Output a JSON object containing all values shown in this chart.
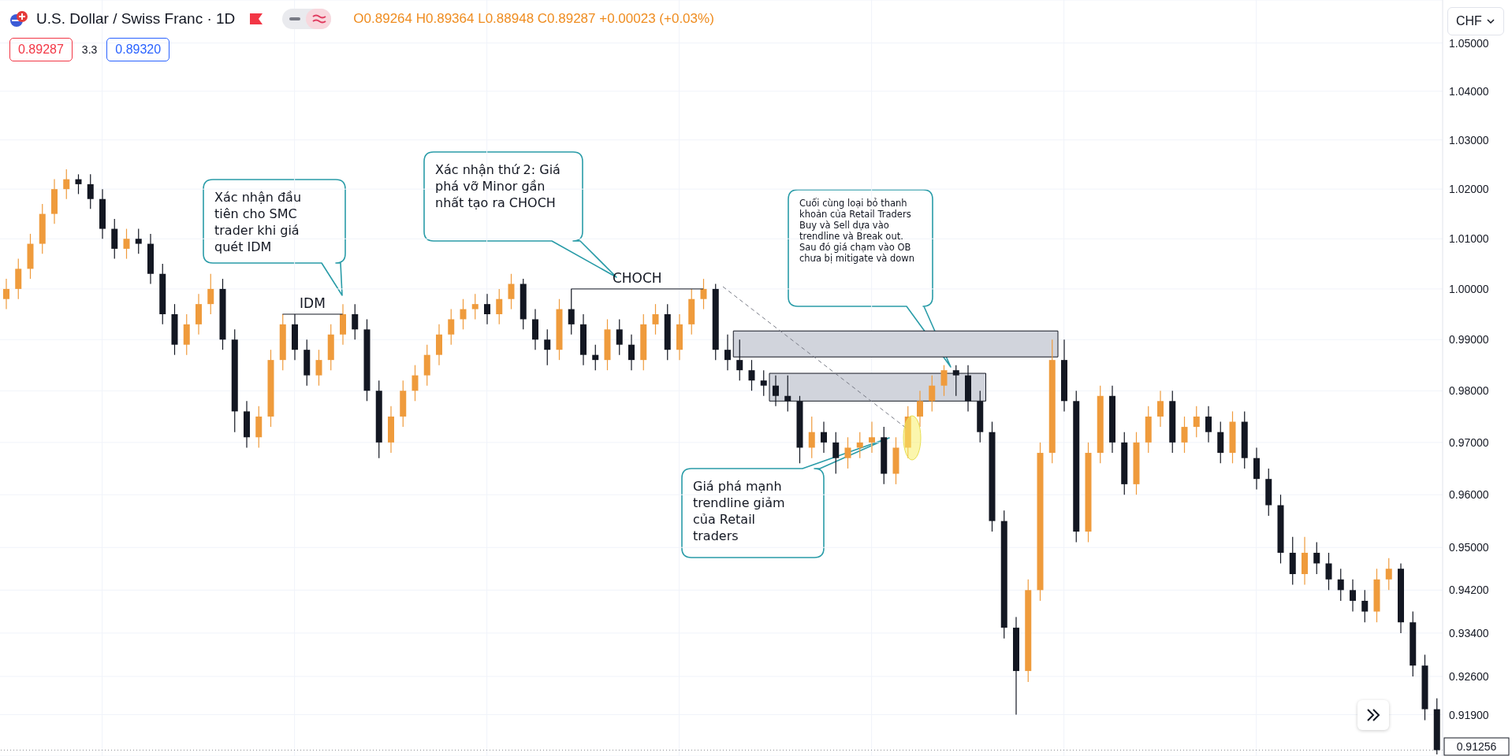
{
  "chart_data": {
    "type": "candlestick",
    "title": "U.S. Dollar / Swiss Franc · 1D",
    "categories": [
      null,
      null,
      null,
      null,
      null,
      null,
      null,
      null,
      null,
      null,
      null,
      null,
      null,
      null,
      null,
      null,
      null,
      null,
      null,
      null,
      null,
      null,
      null,
      null,
      null,
      null,
      null,
      null,
      null,
      null,
      null,
      null,
      null,
      null,
      null,
      null,
      null,
      null,
      null,
      null,
      null,
      null,
      null,
      null,
      null,
      null,
      null,
      null,
      null,
      null,
      null,
      null,
      null,
      null,
      null,
      null,
      null,
      null,
      null,
      null,
      null,
      null,
      null,
      null,
      null,
      null,
      null,
      null,
      null,
      null,
      null,
      null,
      null,
      null,
      null,
      null,
      null,
      null,
      null,
      null,
      null,
      null,
      null,
      null,
      null,
      null,
      null,
      null,
      null,
      null,
      null,
      null,
      null,
      null,
      null,
      null,
      null,
      null,
      null,
      null,
      null,
      null,
      null,
      null,
      null,
      null,
      null,
      null,
      null,
      null,
      null,
      null,
      null,
      null,
      null,
      null,
      null,
      null,
      null,
      null
    ],
    "ohlc": [
      [
        0.998,
        1.002,
        0.996,
        1.0
      ],
      [
        1.0,
        1.006,
        0.998,
        1.004
      ],
      [
        1.004,
        1.011,
        1.002,
        1.009
      ],
      [
        1.009,
        1.017,
        1.007,
        1.015
      ],
      [
        1.015,
        1.022,
        1.013,
        1.02
      ],
      [
        1.02,
        1.024,
        1.018,
        1.022
      ],
      [
        1.022,
        1.023,
        1.019,
        1.021
      ],
      [
        1.021,
        1.023,
        1.016,
        1.018
      ],
      [
        1.018,
        1.02,
        1.01,
        1.012
      ],
      [
        1.012,
        1.014,
        1.006,
        1.008
      ],
      [
        1.008,
        1.012,
        1.006,
        1.01
      ],
      [
        1.01,
        1.012,
        1.007,
        1.009
      ],
      [
        1.009,
        1.011,
        1.001,
        1.003
      ],
      [
        1.003,
        1.005,
        0.993,
        0.995
      ],
      [
        0.995,
        0.997,
        0.987,
        0.989
      ],
      [
        0.989,
        0.995,
        0.987,
        0.993
      ],
      [
        0.993,
        0.999,
        0.991,
        0.997
      ],
      [
        0.997,
        1.003,
        0.995,
        1.0
      ],
      [
        1.0,
        1.002,
        0.988,
        0.99
      ],
      [
        0.99,
        0.992,
        0.972,
        0.976
      ],
      [
        0.976,
        0.978,
        0.969,
        0.971
      ],
      [
        0.971,
        0.977,
        0.969,
        0.975
      ],
      [
        0.975,
        0.988,
        0.973,
        0.986
      ],
      [
        0.986,
        0.995,
        0.984,
        0.993
      ],
      [
        0.993,
        0.995,
        0.986,
        0.988
      ],
      [
        0.988,
        0.99,
        0.981,
        0.983
      ],
      [
        0.983,
        0.988,
        0.981,
        0.986
      ],
      [
        0.986,
        0.993,
        0.984,
        0.991
      ],
      [
        0.991,
        0.997,
        0.989,
        0.995
      ],
      [
        0.995,
        0.997,
        0.99,
        0.992
      ],
      [
        0.992,
        0.994,
        0.978,
        0.98
      ],
      [
        0.98,
        0.982,
        0.967,
        0.97
      ],
      [
        0.97,
        0.977,
        0.968,
        0.975
      ],
      [
        0.975,
        0.982,
        0.973,
        0.98
      ],
      [
        0.98,
        0.985,
        0.978,
        0.983
      ],
      [
        0.983,
        0.989,
        0.981,
        0.987
      ],
      [
        0.987,
        0.993,
        0.985,
        0.991
      ],
      [
        0.991,
        0.996,
        0.989,
        0.994
      ],
      [
        0.994,
        0.998,
        0.992,
        0.996
      ],
      [
        0.996,
        0.999,
        0.994,
        0.997
      ],
      [
        0.997,
        0.999,
        0.993,
        0.995
      ],
      [
        0.995,
        1.0,
        0.993,
        0.998
      ],
      [
        0.998,
        1.003,
        0.996,
        1.001
      ],
      [
        1.001,
        1.002,
        0.992,
        0.994
      ],
      [
        0.994,
        0.996,
        0.988,
        0.99
      ],
      [
        0.99,
        0.992,
        0.985,
        0.988
      ],
      [
        0.988,
        0.998,
        0.986,
        0.996
      ],
      [
        0.996,
        1.0,
        0.991,
        0.993
      ],
      [
        0.993,
        0.995,
        0.985,
        0.987
      ],
      [
        0.987,
        0.989,
        0.984,
        0.986
      ],
      [
        0.986,
        0.994,
        0.984,
        0.992
      ],
      [
        0.992,
        0.994,
        0.987,
        0.989
      ],
      [
        0.989,
        0.991,
        0.984,
        0.986
      ],
      [
        0.986,
        0.995,
        0.984,
        0.993
      ],
      [
        0.993,
        0.997,
        0.991,
        0.995
      ],
      [
        0.995,
        0.997,
        0.986,
        0.988
      ],
      [
        0.988,
        0.995,
        0.986,
        0.993
      ],
      [
        0.993,
        1.0,
        0.991,
        0.998
      ],
      [
        0.998,
        1.002,
        0.996,
        1.0
      ],
      [
        1.0,
        1.001,
        0.986,
        0.988
      ],
      [
        0.988,
        0.991,
        0.984,
        0.986
      ],
      [
        0.986,
        0.99,
        0.982,
        0.984
      ],
      [
        0.984,
        0.986,
        0.98,
        0.982
      ],
      [
        0.982,
        0.984,
        0.979,
        0.981
      ],
      [
        0.981,
        0.983,
        0.977,
        0.979
      ],
      [
        0.979,
        0.983,
        0.976,
        0.978
      ],
      [
        0.978,
        0.979,
        0.966,
        0.969
      ],
      [
        0.969,
        0.975,
        0.967,
        0.972
      ],
      [
        0.972,
        0.974,
        0.968,
        0.97
      ],
      [
        0.97,
        0.972,
        0.964,
        0.967
      ],
      [
        0.967,
        0.971,
        0.965,
        0.969
      ],
      [
        0.969,
        0.972,
        0.967,
        0.97
      ],
      [
        0.97,
        0.974,
        0.968,
        0.971
      ],
      [
        0.971,
        0.973,
        0.962,
        0.964
      ],
      [
        0.964,
        0.971,
        0.962,
        0.969
      ],
      [
        0.969,
        0.977,
        0.967,
        0.975
      ],
      [
        0.975,
        0.98,
        0.973,
        0.978
      ],
      [
        0.978,
        0.983,
        0.976,
        0.981
      ],
      [
        0.981,
        0.985,
        0.979,
        0.984
      ],
      [
        0.984,
        0.985,
        0.979,
        0.983
      ],
      [
        0.983,
        0.985,
        0.976,
        0.978
      ],
      [
        0.978,
        0.98,
        0.97,
        0.972
      ],
      [
        0.972,
        0.974,
        0.953,
        0.955
      ],
      [
        0.955,
        0.957,
        0.933,
        0.935
      ],
      [
        0.935,
        0.937,
        0.919,
        0.927
      ],
      [
        0.927,
        0.944,
        0.925,
        0.942
      ],
      [
        0.942,
        0.97,
        0.94,
        0.968
      ],
      [
        0.968,
        0.99,
        0.966,
        0.986
      ],
      [
        0.986,
        0.99,
        0.976,
        0.978
      ],
      [
        0.978,
        0.98,
        0.951,
        0.953
      ],
      [
        0.953,
        0.97,
        0.951,
        0.968
      ],
      [
        0.968,
        0.981,
        0.966,
        0.979
      ],
      [
        0.979,
        0.981,
        0.968,
        0.97
      ],
      [
        0.97,
        0.972,
        0.96,
        0.962
      ],
      [
        0.962,
        0.972,
        0.96,
        0.97
      ],
      [
        0.97,
        0.977,
        0.968,
        0.975
      ],
      [
        0.975,
        0.98,
        0.973,
        0.978
      ],
      [
        0.978,
        0.98,
        0.968,
        0.97
      ],
      [
        0.97,
        0.975,
        0.968,
        0.973
      ],
      [
        0.973,
        0.977,
        0.971,
        0.975
      ],
      [
        0.975,
        0.977,
        0.97,
        0.972
      ],
      [
        0.972,
        0.974,
        0.966,
        0.968
      ],
      [
        0.968,
        0.976,
        0.966,
        0.974
      ],
      [
        0.974,
        0.976,
        0.965,
        0.967
      ],
      [
        0.967,
        0.969,
        0.961,
        0.963
      ],
      [
        0.963,
        0.965,
        0.956,
        0.958
      ],
      [
        0.958,
        0.96,
        0.947,
        0.949
      ],
      [
        0.949,
        0.952,
        0.943,
        0.945
      ],
      [
        0.945,
        0.952,
        0.943,
        0.949
      ],
      [
        0.949,
        0.951,
        0.945,
        0.947
      ],
      [
        0.947,
        0.949,
        0.942,
        0.944
      ],
      [
        0.944,
        0.946,
        0.94,
        0.942
      ],
      [
        0.942,
        0.944,
        0.938,
        0.94
      ],
      [
        0.94,
        0.942,
        0.936,
        0.938
      ],
      [
        0.938,
        0.946,
        0.936,
        0.944
      ],
      [
        0.944,
        0.948,
        0.942,
        0.946
      ],
      [
        0.946,
        0.947,
        0.934,
        0.936
      ],
      [
        0.936,
        0.938,
        0.926,
        0.928
      ],
      [
        0.928,
        0.93,
        0.918,
        0.92
      ],
      [
        0.92,
        0.922,
        0.9118,
        0.91256
      ]
    ],
    "colors": [
      "#ef9b3c",
      "#ef9b3c",
      "#ef9b3c",
      "#ef9b3c",
      "#ef9b3c",
      "#ef9b3c",
      "#131722",
      "#131722",
      "#131722",
      "#131722",
      "#ef9b3c",
      "#131722",
      "#131722",
      "#131722",
      "#131722",
      "#ef9b3c",
      "#ef9b3c",
      "#ef9b3c",
      "#131722",
      "#131722",
      "#131722",
      "#ef9b3c",
      "#ef9b3c",
      "#ef9b3c",
      "#131722",
      "#131722",
      "#ef9b3c",
      "#ef9b3c",
      "#ef9b3c",
      "#131722",
      "#131722",
      "#131722",
      "#ef9b3c",
      "#ef9b3c",
      "#ef9b3c",
      "#ef9b3c",
      "#ef9b3c",
      "#ef9b3c",
      "#ef9b3c",
      "#ef9b3c",
      "#131722",
      "#ef9b3c",
      "#ef9b3c",
      "#131722",
      "#131722",
      "#131722",
      "#ef9b3c",
      "#131722",
      "#131722",
      "#131722",
      "#ef9b3c",
      "#131722",
      "#131722",
      "#ef9b3c",
      "#ef9b3c",
      "#131722",
      "#ef9b3c",
      "#ef9b3c",
      "#ef9b3c",
      "#131722",
      "#131722",
      "#131722",
      "#131722",
      "#131722",
      "#131722",
      "#131722",
      "#131722",
      "#ef9b3c",
      "#131722",
      "#131722",
      "#ef9b3c",
      "#ef9b3c",
      "#ef9b3c",
      "#131722",
      "#ef9b3c",
      "#ef9b3c",
      "#ef9b3c",
      "#ef9b3c",
      "#ef9b3c",
      "#131722",
      "#131722",
      "#131722",
      "#131722",
      "#131722",
      "#131722",
      "#ef9b3c",
      "#ef9b3c",
      "#ef9b3c",
      "#131722",
      "#131722",
      "#ef9b3c",
      "#ef9b3c",
      "#131722",
      "#131722",
      "#ef9b3c",
      "#ef9b3c",
      "#ef9b3c",
      "#131722",
      "#ef9b3c",
      "#ef9b3c",
      "#131722",
      "#131722",
      "#ef9b3c",
      "#131722",
      "#131722",
      "#131722",
      "#131722",
      "#131722",
      "#ef9b3c",
      "#131722",
      "#131722",
      "#131722",
      "#131722",
      "#131722",
      "#ef9b3c",
      "#ef9b3c",
      "#131722",
      "#131722",
      "#131722",
      "#131722"
    ],
    "log": "y",
    "ylim": [
      0.9115,
      1.059
    ],
    "yticks": [
      {
        "value": 0.919,
        "label": "0.91900"
      },
      {
        "value": 0.926,
        "label": "0.92600"
      },
      {
        "value": 0.934,
        "label": "0.93400"
      },
      {
        "value": 0.942,
        "label": "0.94200"
      },
      {
        "value": 0.95,
        "label": "0.95000"
      },
      {
        "value": 0.96,
        "label": "0.96000"
      },
      {
        "value": 0.97,
        "label": "0.97000"
      },
      {
        "value": 0.98,
        "label": "0.98000"
      },
      {
        "value": 0.99,
        "label": "0.99000"
      },
      {
        "value": 1.0,
        "label": "1.00000"
      },
      {
        "value": 1.01,
        "label": "1.01000"
      },
      {
        "value": 1.02,
        "label": "1.02000"
      },
      {
        "value": 1.03,
        "label": "1.03000"
      },
      {
        "value": 1.04,
        "label": "1.04000"
      },
      {
        "value": 1.05,
        "label": "1.05000"
      }
    ],
    "grid": true,
    "bands": [
      {
        "axis": "y",
        "from": 0.9866,
        "to": 0.9917,
        "color": "#d1d4dc"
      },
      {
        "axis": "y",
        "from": 0.978,
        "to": 0.9834,
        "color": "#d1d4dc"
      }
    ],
    "ref_lines": [
      {
        "axis": "y",
        "value": 0.91256,
        "label": "0.91256"
      },
      {
        "axis": "y",
        "value": 0.995,
        "label": "IDM"
      },
      {
        "axis": "y",
        "value": 1.0,
        "label": "CHOCH"
      }
    ],
    "annotations": [
      "O0.89264 H0.89364 L0.88948 C0.89287 +0.00023 (+0.03%)",
      "0.89287",
      "3.3",
      "0.89320",
      "CHF",
      "Xác nhận đầu tiên cho SMC trader khi giá quét IDM",
      "Xác nhận thứ 2: Giá phá vỡ Minor gần nhất tạo ra CHOCH",
      "Cuối cùng loại bỏ thanh khoản của Retail Traders Buy và Sell dựa vào trendline và Break out. Sau đó giá chạm vào OB chưa bị mitigate và down",
      "Giá phá mạnh trendline giảm của Retail traders"
    ]
  }
}
